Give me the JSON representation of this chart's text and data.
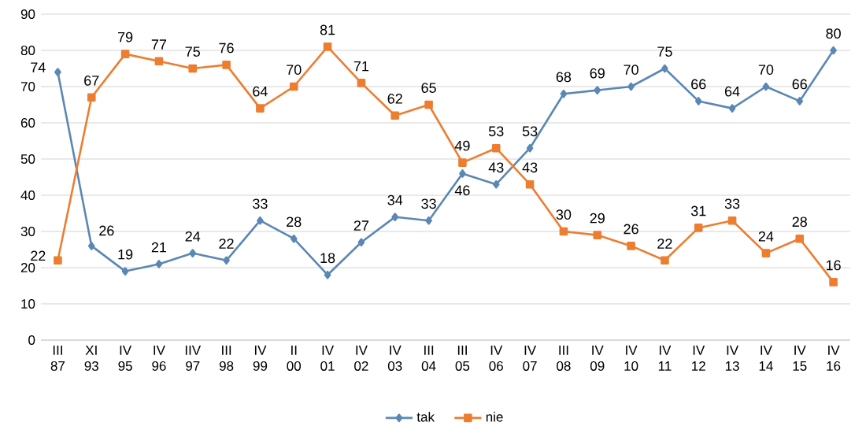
{
  "chart_data": {
    "type": "line",
    "categories": [
      "III 87",
      "XI 93",
      "IV 95",
      "IV 96",
      "IIV 97",
      "III 98",
      "IV 99",
      "II 00",
      "IV 01",
      "IV 02",
      "IV 03",
      "III 04",
      "III 05",
      "IV 06",
      "IV 07",
      "III 08",
      "IV 09",
      "IV 10",
      "IV 11",
      "IV 12",
      "IV 13",
      "IV 14",
      "IV 15",
      "IV 16"
    ],
    "series": [
      {
        "name": "tak",
        "color": "#5b87b5",
        "marker": "diamond",
        "values": [
          74,
          26,
          19,
          21,
          24,
          22,
          33,
          28,
          18,
          27,
          34,
          33,
          46,
          43,
          53,
          68,
          69,
          70,
          75,
          66,
          64,
          70,
          66,
          80
        ]
      },
      {
        "name": "nie",
        "color": "#ed7d31",
        "marker": "square",
        "values": [
          22,
          67,
          79,
          77,
          75,
          76,
          64,
          70,
          81,
          71,
          62,
          65,
          49,
          53,
          43,
          30,
          29,
          26,
          22,
          31,
          33,
          24,
          28,
          16
        ]
      }
    ],
    "ylim": [
      0,
      90
    ],
    "yticks": [
      0,
      10,
      20,
      30,
      40,
      50,
      60,
      70,
      80,
      90
    ],
    "grid": "y",
    "legend": "bottom",
    "data_labels": true
  }
}
